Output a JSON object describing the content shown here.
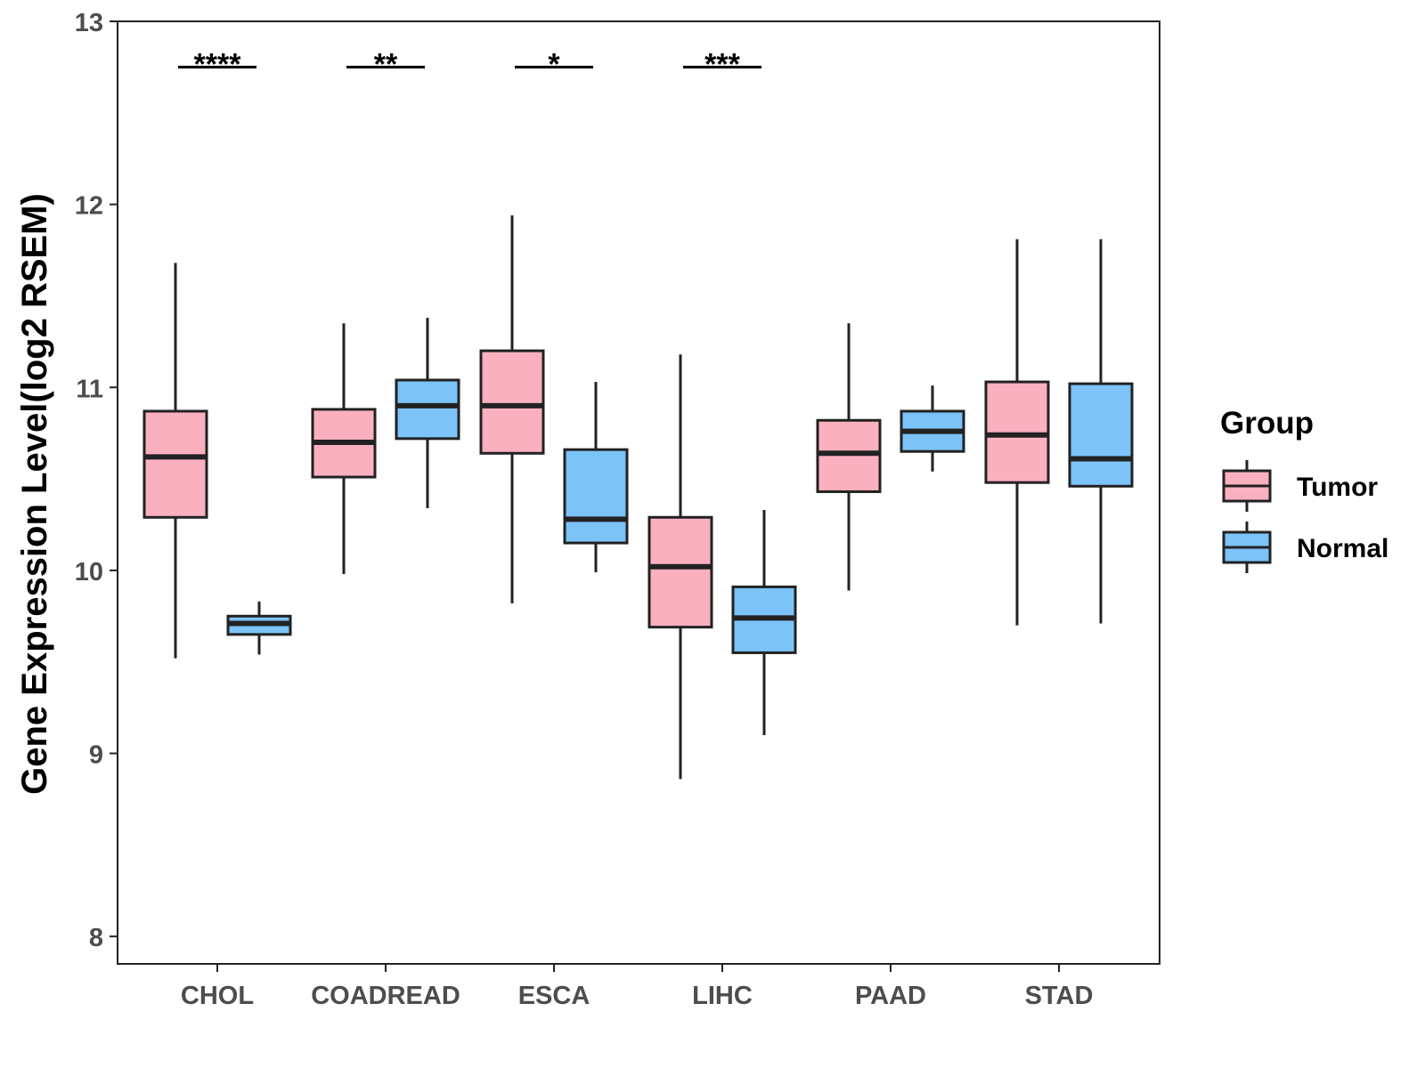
{
  "chart_data": {
    "type": "boxplot",
    "title": "",
    "xlabel": "",
    "ylabel": "Gene Expression Level(log2 RSEM)",
    "ylim": [
      7.85,
      13
    ],
    "yticks": [
      8,
      9,
      10,
      11,
      12,
      13
    ],
    "grid": false,
    "legend_position": "right",
    "categories": [
      "CHOL",
      "COADREAD",
      "ESCA",
      "LIHC",
      "PAAD",
      "STAD"
    ],
    "legend": {
      "title": "Group",
      "entries": [
        {
          "name": "Tumor",
          "color": "#FBB0C0"
        },
        {
          "name": "Normal",
          "color": "#7CC3F8"
        }
      ]
    },
    "series": [
      {
        "name": "Tumor",
        "color": "#FBB0C0",
        "boxes": [
          {
            "category": "CHOL",
            "min": 9.52,
            "q1": 10.29,
            "median": 10.62,
            "q3": 10.87,
            "max": 11.68
          },
          {
            "category": "COADREAD",
            "min": 9.98,
            "q1": 10.51,
            "median": 10.7,
            "q3": 10.88,
            "max": 11.35
          },
          {
            "category": "ESCA",
            "min": 9.82,
            "q1": 10.64,
            "median": 10.9,
            "q3": 11.2,
            "max": 11.94
          },
          {
            "category": "LIHC",
            "min": 8.86,
            "q1": 9.69,
            "median": 10.02,
            "q3": 10.29,
            "max": 11.18
          },
          {
            "category": "PAAD",
            "min": 9.89,
            "q1": 10.43,
            "median": 10.64,
            "q3": 10.82,
            "max": 11.35
          },
          {
            "category": "STAD",
            "min": 9.7,
            "q1": 10.48,
            "median": 10.74,
            "q3": 11.03,
            "max": 11.81
          }
        ]
      },
      {
        "name": "Normal",
        "color": "#7CC3F8",
        "boxes": [
          {
            "category": "CHOL",
            "min": 9.54,
            "q1": 9.65,
            "median": 9.71,
            "q3": 9.75,
            "max": 9.83
          },
          {
            "category": "COADREAD",
            "min": 10.34,
            "q1": 10.72,
            "median": 10.9,
            "q3": 11.04,
            "max": 11.38
          },
          {
            "category": "ESCA",
            "min": 9.99,
            "q1": 10.15,
            "median": 10.28,
            "q3": 10.66,
            "max": 11.03
          },
          {
            "category": "LIHC",
            "min": 9.1,
            "q1": 9.55,
            "median": 9.74,
            "q3": 9.91,
            "max": 10.33
          },
          {
            "category": "PAAD",
            "min": 10.54,
            "q1": 10.65,
            "median": 10.76,
            "q3": 10.87,
            "max": 11.01
          },
          {
            "category": "STAD",
            "min": 9.71,
            "q1": 10.46,
            "median": 10.61,
            "q3": 11.02,
            "max": 11.81
          }
        ]
      }
    ],
    "significance": [
      {
        "category": "CHOL",
        "label": "****",
        "y": 12.75
      },
      {
        "category": "COADREAD",
        "label": "**",
        "y": 12.75
      },
      {
        "category": "ESCA",
        "label": "*",
        "y": 12.75
      },
      {
        "category": "LIHC",
        "label": "***",
        "y": 12.75
      }
    ]
  }
}
